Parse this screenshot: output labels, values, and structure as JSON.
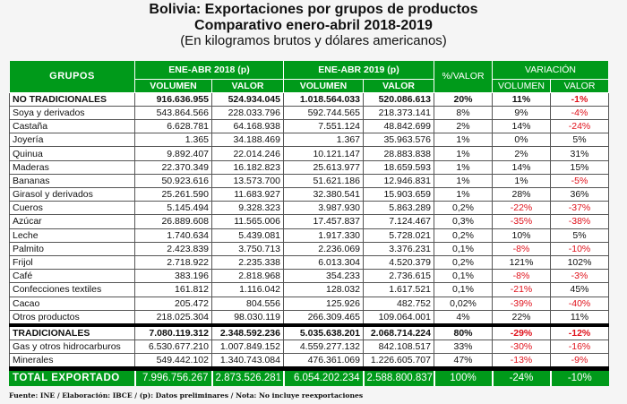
{
  "title": {
    "line1": "Bolivia: Exportaciones por grupos de productos",
    "line2": "Comparativo enero-abril 2018-2019",
    "line3": "(En kilogramos brutos y dólares americanos)"
  },
  "headers": {
    "grupos": "GRUPOS",
    "period_2018": "ENE-ABR 2018 (p)",
    "period_2019": "ENE-ABR 2019 (p)",
    "pct_valor": "%/VALOR",
    "variacion": "VARIACIÓN",
    "volumen": "VOLUMEN",
    "valor": "VALOR"
  },
  "colors": {
    "header_green": "#009a1a",
    "negative_red": "#e0121c"
  },
  "rows": [
    {
      "grupo": "NO TRADICIONALES",
      "vol2018": "916.636.955",
      "val2018": "524.934.045",
      "vol2019": "1.018.564.033",
      "val2019": "520.086.613",
      "pct": "20%",
      "var_vol": "11%",
      "var_val": "-1%",
      "style": "bold"
    },
    {
      "grupo": "Soya y derivados",
      "vol2018": "543.864.566",
      "val2018": "228.033.796",
      "vol2019": "592.744.565",
      "val2019": "218.373.141",
      "pct": "8%",
      "var_vol": "9%",
      "var_val": "-4%"
    },
    {
      "grupo": "Castaña",
      "vol2018": "6.628.781",
      "val2018": "64.168.938",
      "vol2019": "7.551.124",
      "val2019": "48.842.699",
      "pct": "2%",
      "var_vol": "14%",
      "var_val": "-24%"
    },
    {
      "grupo": "Joyería",
      "vol2018": "1.365",
      "val2018": "34.188.469",
      "vol2019": "1.367",
      "val2019": "35.963.576",
      "pct": "1%",
      "var_vol": "0%",
      "var_val": "5%"
    },
    {
      "grupo": "Quinua",
      "vol2018": "9.892.407",
      "val2018": "22.014.246",
      "vol2019": "10.121.147",
      "val2019": "28.883.838",
      "pct": "1%",
      "var_vol": "2%",
      "var_val": "31%"
    },
    {
      "grupo": "Maderas",
      "vol2018": "22.370.349",
      "val2018": "16.182.823",
      "vol2019": "25.613.977",
      "val2019": "18.659.593",
      "pct": "1%",
      "var_vol": "14%",
      "var_val": "15%"
    },
    {
      "grupo": "Bananas",
      "vol2018": "50.923.616",
      "val2018": "13.573.700",
      "vol2019": "51.621.186",
      "val2019": "12.946.831",
      "pct": "1%",
      "var_vol": "1%",
      "var_val": "-5%"
    },
    {
      "grupo": "Girasol y derivados",
      "vol2018": "25.261.590",
      "val2018": "11.683.927",
      "vol2019": "32.380.541",
      "val2019": "15.903.659",
      "pct": "1%",
      "var_vol": "28%",
      "var_val": "36%"
    },
    {
      "grupo": "Cueros",
      "vol2018": "5.145.494",
      "val2018": "9.328.323",
      "vol2019": "3.987.930",
      "val2019": "5.863.289",
      "pct": "0,2%",
      "var_vol": "-22%",
      "var_val": "-37%"
    },
    {
      "grupo": "Azúcar",
      "vol2018": "26.889.608",
      "val2018": "11.565.006",
      "vol2019": "17.457.837",
      "val2019": "7.124.467",
      "pct": "0,3%",
      "var_vol": "-35%",
      "var_val": "-38%"
    },
    {
      "grupo": "Leche",
      "vol2018": "1.740.634",
      "val2018": "5.439.081",
      "vol2019": "1.917.330",
      "val2019": "5.728.021",
      "pct": "0,2%",
      "var_vol": "10%",
      "var_val": "5%"
    },
    {
      "grupo": "Palmito",
      "vol2018": "2.423.839",
      "val2018": "3.750.713",
      "vol2019": "2.236.069",
      "val2019": "3.376.231",
      "pct": "0,1%",
      "var_vol": "-8%",
      "var_val": "-10%"
    },
    {
      "grupo": "Frijol",
      "vol2018": "2.718.922",
      "val2018": "2.235.338",
      "vol2019": "6.013.304",
      "val2019": "4.520.379",
      "pct": "0,2%",
      "var_vol": "121%",
      "var_val": "102%"
    },
    {
      "grupo": "Café",
      "vol2018": "383.196",
      "val2018": "2.818.968",
      "vol2019": "354.233",
      "val2019": "2.736.615",
      "pct": "0,1%",
      "var_vol": "-8%",
      "var_val": "-3%"
    },
    {
      "grupo": "Confecciones textiles",
      "vol2018": "161.812",
      "val2018": "1.116.042",
      "vol2019": "128.032",
      "val2019": "1.617.521",
      "pct": "0,1%",
      "var_vol": "-21%",
      "var_val": "45%"
    },
    {
      "grupo": "Cacao",
      "vol2018": "205.472",
      "val2018": "804.556",
      "vol2019": "125.926",
      "val2019": "482.752",
      "pct": "0,02%",
      "var_vol": "-39%",
      "var_val": "-40%"
    },
    {
      "grupo": "Otros productos",
      "vol2018": "218.025.304",
      "val2018": "98.030.119",
      "vol2019": "266.309.465",
      "val2019": "109.064.001",
      "pct": "4%",
      "var_vol": "22%",
      "var_val": "11%"
    },
    {
      "grupo": "TRADICIONALES",
      "vol2018": "7.080.119.312",
      "val2018": "2.348.592.236",
      "vol2019": "5.035.638.201",
      "val2019": "2.068.714.224",
      "pct": "80%",
      "var_vol": "-29%",
      "var_val": "-12%",
      "style": "bold sep"
    },
    {
      "grupo": "Gas y otros hidrocarburos",
      "vol2018": "6.530.677.210",
      "val2018": "1.007.849.152",
      "vol2019": "4.559.277.132",
      "val2019": "842.108.517",
      "pct": "33%",
      "var_vol": "-30%",
      "var_val": "-16%"
    },
    {
      "grupo": "Minerales",
      "vol2018": "549.442.102",
      "val2018": "1.340.743.084",
      "vol2019": "476.361.069",
      "val2019": "1.226.605.707",
      "pct": "47%",
      "var_vol": "-13%",
      "var_val": "-9%"
    },
    {
      "grupo": "TOTAL EXPORTADO",
      "vol2018": "7.996.756.267",
      "val2018": "2.873.526.281",
      "vol2019": "6.054.202.234",
      "val2019": "2.588.800.837",
      "pct": "100%",
      "var_vol": "-24%",
      "var_val": "-10%",
      "style": "total sep"
    }
  ],
  "footer": "Fuente: INE / Elaboración: IBCE / (p): Datos preliminares / Nota: No incluye reexportaciones"
}
